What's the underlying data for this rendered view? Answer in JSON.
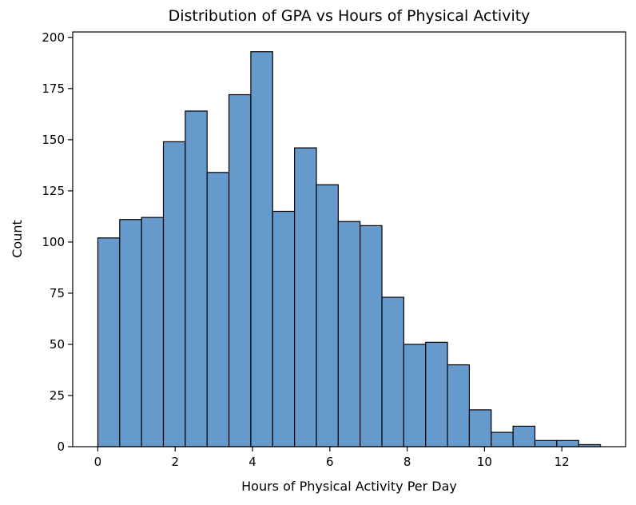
{
  "chart_data": {
    "type": "bar",
    "title": "Distribution of GPA vs Hours of Physical Activity",
    "xlabel": "Hours of Physical Activity Per Day",
    "ylabel": "Count",
    "bin_edges": [
      0,
      0.5652,
      1.1304,
      1.6957,
      2.2609,
      2.8261,
      3.3913,
      3.9565,
      4.5217,
      5.087,
      5.6522,
      6.2174,
      6.7826,
      7.3478,
      7.913,
      8.4783,
      9.0435,
      9.6087,
      10.1739,
      10.7391,
      11.3043,
      11.8696,
      12.4348,
      13.0
    ],
    "values": [
      102,
      111,
      112,
      149,
      164,
      134,
      172,
      193,
      115,
      146,
      128,
      110,
      108,
      73,
      50,
      51,
      40,
      18,
      7,
      10,
      3,
      3,
      1
    ],
    "bar_color": "#6699cc",
    "xlim": [
      -0.65,
      13.65
    ],
    "ylim": [
      0,
      202.65
    ],
    "xticks": [
      0,
      2,
      4,
      6,
      8,
      10,
      12
    ],
    "xtick_labels": [
      "0",
      "2",
      "4",
      "6",
      "8",
      "10",
      "12"
    ],
    "yticks": [
      0,
      25,
      50,
      75,
      100,
      125,
      150,
      175,
      200
    ],
    "ytick_labels": [
      "0",
      "25",
      "50",
      "75",
      "100",
      "125",
      "150",
      "175",
      "200"
    ],
    "grid": false,
    "legend": "none"
  }
}
